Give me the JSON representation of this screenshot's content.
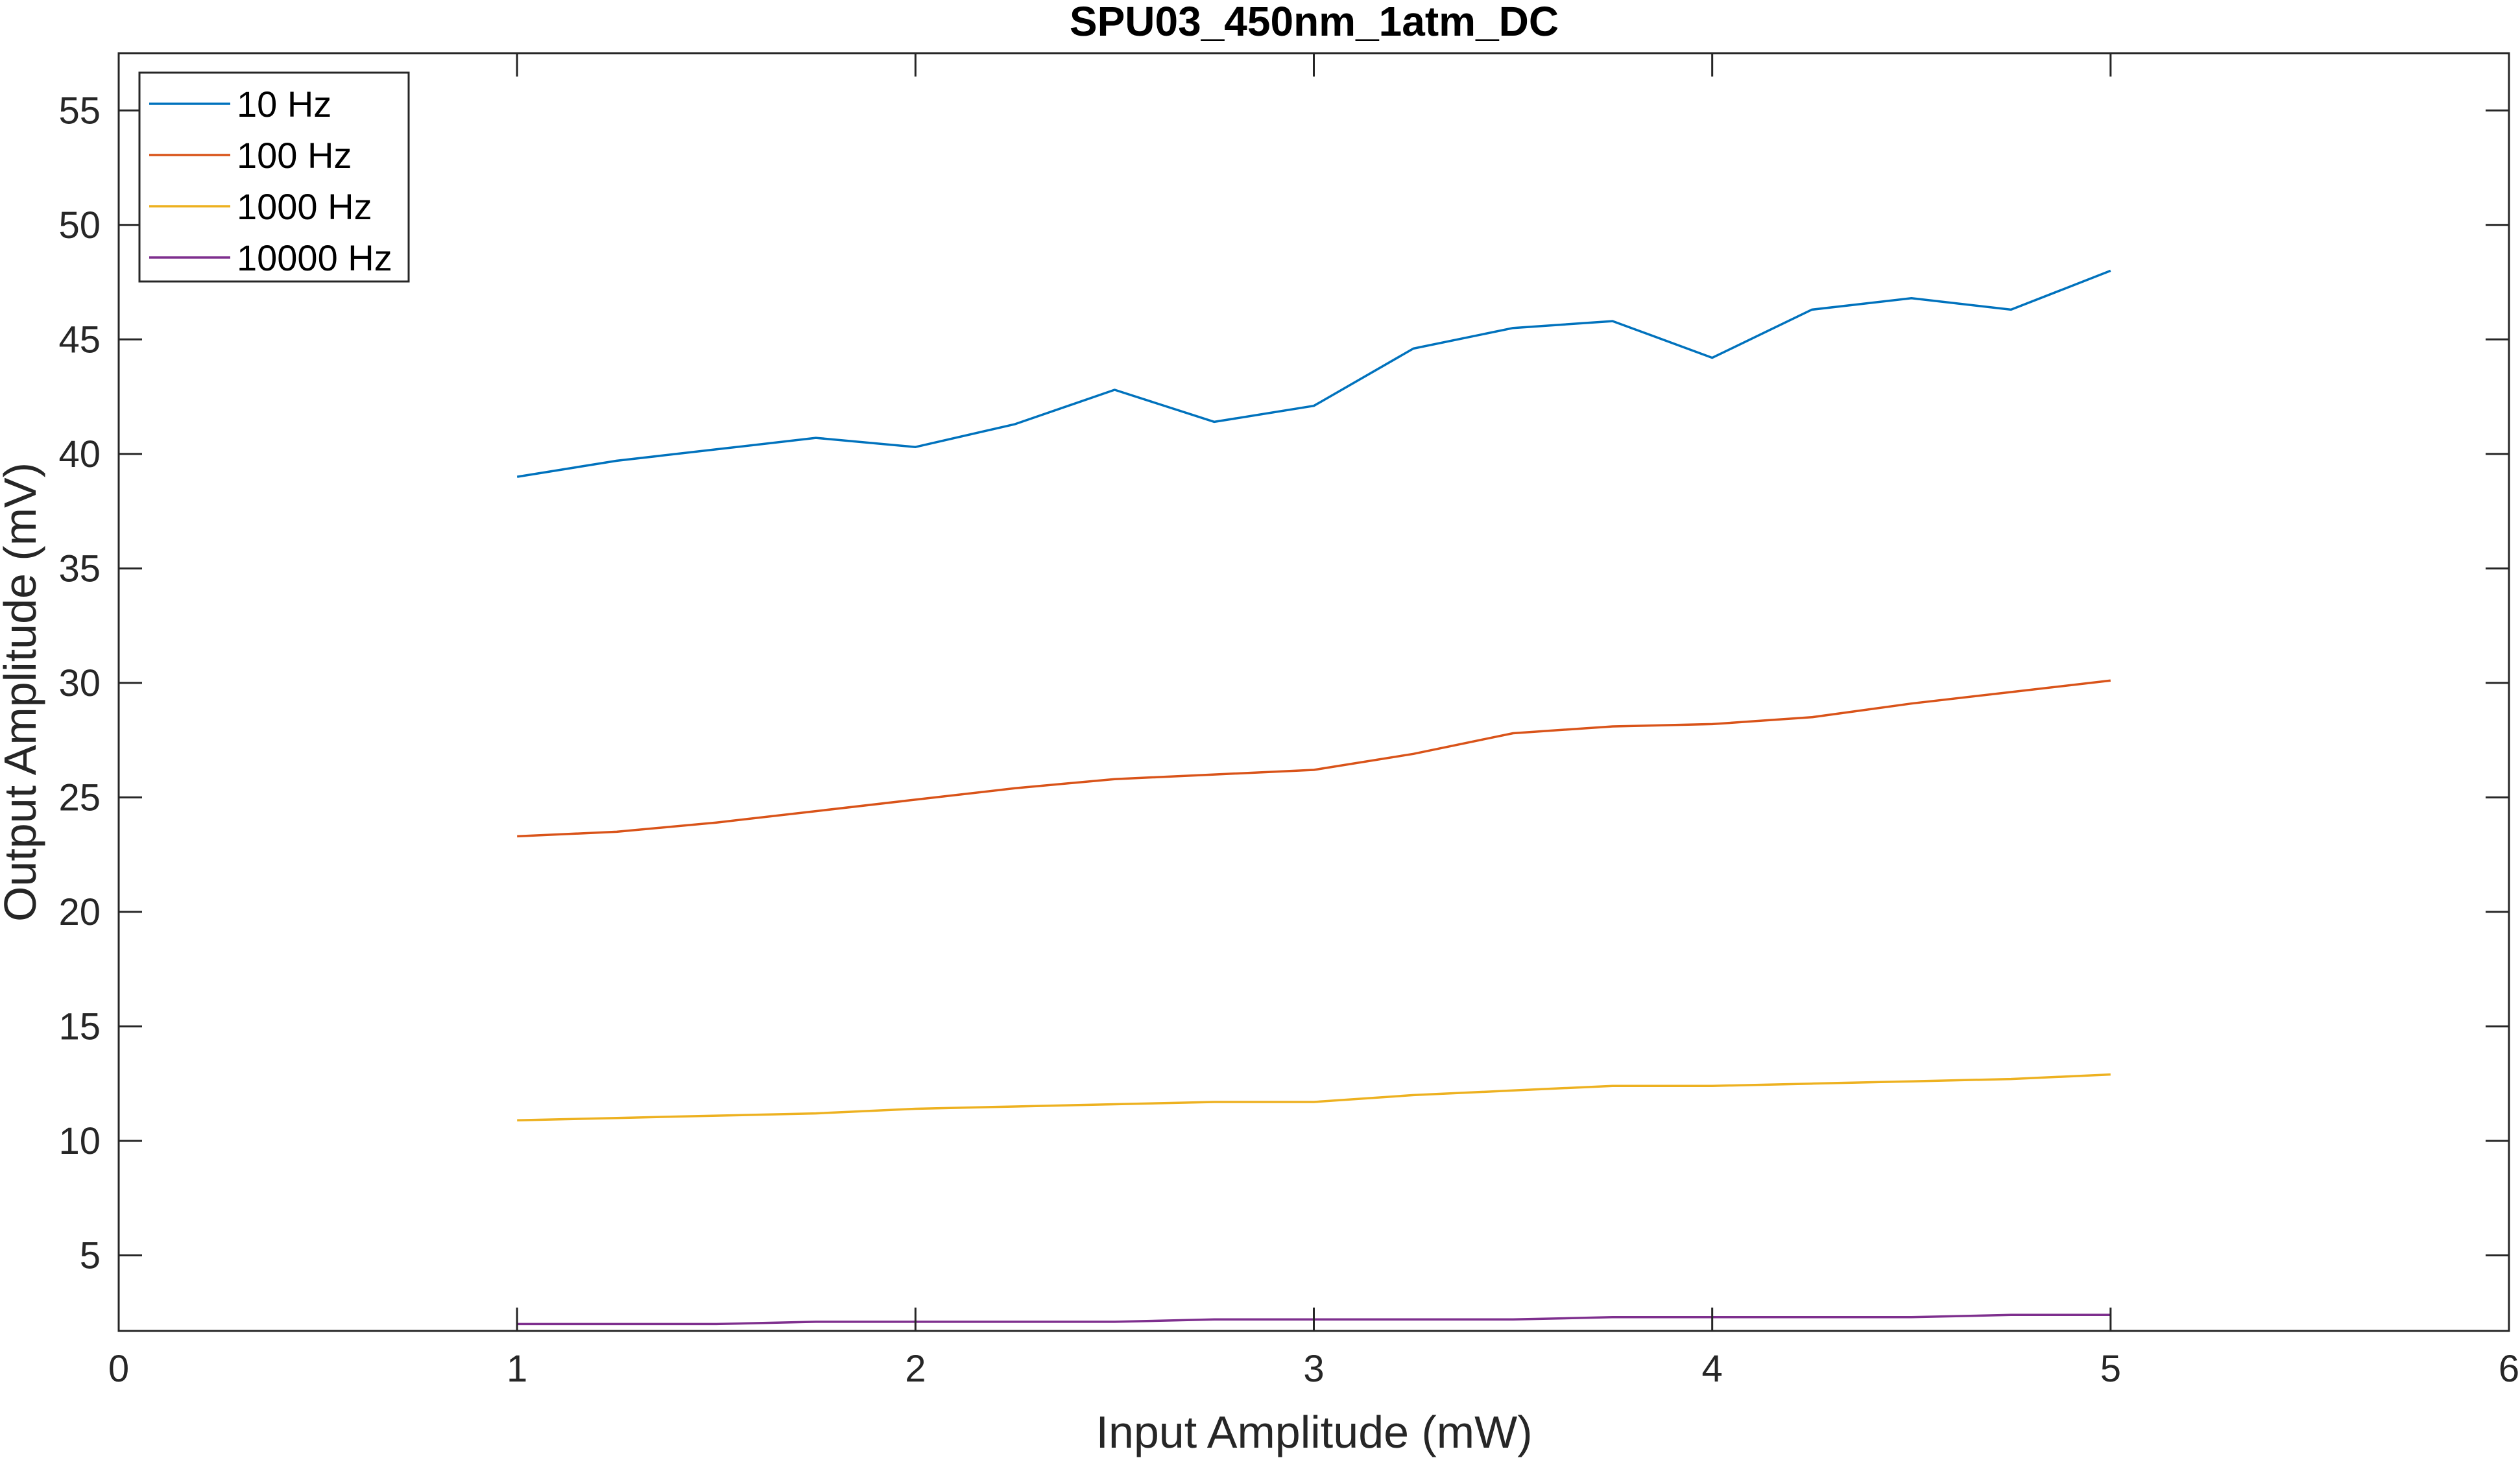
{
  "chart_data": {
    "type": "line",
    "title": "SPU03_450nm_1atm_DC",
    "xlabel": "Input Amplitude (mW)",
    "ylabel": "Output Amplitude (mV)",
    "xlim": [
      0,
      6
    ],
    "ylim": [
      1.7,
      57.5
    ],
    "xticks": [
      0,
      1,
      2,
      3,
      4,
      5,
      6
    ],
    "yticks": [
      5,
      10,
      15,
      20,
      25,
      30,
      35,
      40,
      45,
      50,
      55
    ],
    "grid": false,
    "legend_position": "top-left",
    "x": [
      1,
      1.25,
      1.5,
      1.75,
      2,
      2.25,
      2.5,
      2.75,
      3,
      3.25,
      3.5,
      3.75,
      4,
      4.25,
      4.5,
      4.75,
      5
    ],
    "series": [
      {
        "name": "10 Hz",
        "color": "#0072bd",
        "values": [
          39.0,
          39.7,
          40.2,
          40.7,
          40.3,
          41.3,
          42.8,
          41.4,
          42.1,
          44.6,
          45.5,
          45.8,
          44.2,
          46.3,
          46.8,
          46.3,
          48.0
        ]
      },
      {
        "name": "100 Hz",
        "color": "#d95319",
        "values": [
          23.3,
          23.5,
          23.9,
          24.4,
          24.9,
          25.4,
          25.8,
          26.0,
          26.2,
          26.9,
          27.8,
          28.1,
          28.2,
          28.5,
          29.1,
          29.6,
          30.1
        ]
      },
      {
        "name": "1000 Hz",
        "color": "#edb120",
        "values": [
          10.9,
          11.0,
          11.1,
          11.2,
          11.4,
          11.5,
          11.6,
          11.7,
          11.7,
          12.0,
          12.2,
          12.4,
          12.4,
          12.5,
          12.6,
          12.7,
          12.9
        ]
      },
      {
        "name": "10000 Hz",
        "color": "#7e2f8e",
        "values": [
          2.0,
          2.0,
          2.0,
          2.1,
          2.1,
          2.1,
          2.1,
          2.2,
          2.2,
          2.2,
          2.2,
          2.3,
          2.3,
          2.3,
          2.3,
          2.4,
          2.4
        ]
      }
    ]
  }
}
